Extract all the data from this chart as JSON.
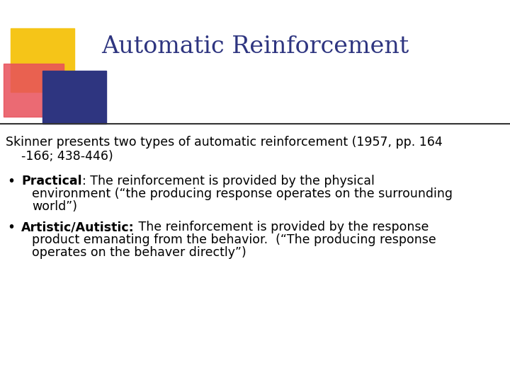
{
  "title": "Automatic Reinforcement",
  "title_color": "#2E3580",
  "title_fontsize": 24,
  "title_font": "serif",
  "bg_color": "#FFFFFF",
  "separator_color": "#333333",
  "logo": {
    "yellow": "#F5C518",
    "red": "#E8505B",
    "blue": "#2E3580"
  },
  "body_fontsize": 12.5,
  "body_font": "DejaVu Sans",
  "body_color": "#000000",
  "intro_line1": "Skinner presents two types of automatic reinforcement (1957, pp. 164",
  "intro_line2": "    -166; 438-446)",
  "bullet1_bold": "Practical",
  "bullet1_colon": ": The reinforcement is provided by the physical",
  "bullet1_line2": "environment (“the producing response operates on the surrounding",
  "bullet1_line3": "world”)",
  "bullet2_bold": "Artistic/Autistic:",
  "bullet2_rest": " The reinforcement is provided by the response",
  "bullet2_line2": "product emanating from the behavior.  (“The producing response",
  "bullet2_line3": "operates on the behaver directly”)"
}
